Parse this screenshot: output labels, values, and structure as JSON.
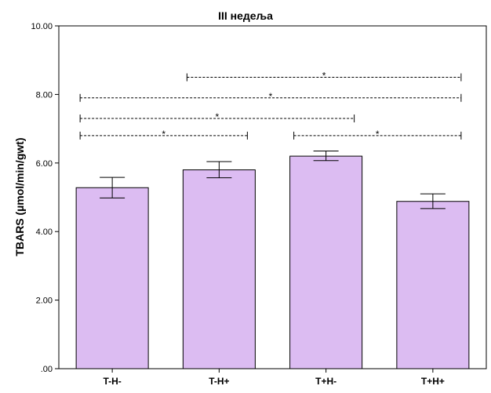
{
  "chart_data": {
    "type": "bar",
    "title": "III недеља",
    "xlabel": "",
    "ylabel": "TBARS (µmol/min/gwt)",
    "categories": [
      "T-H-",
      "T-H+",
      "T+H-",
      "T+H+"
    ],
    "values": [
      5.28,
      5.8,
      6.2,
      4.88
    ],
    "error_low": [
      4.98,
      5.57,
      6.07,
      4.67
    ],
    "error_high": [
      5.58,
      6.04,
      6.35,
      5.1
    ],
    "ylim": [
      0,
      10
    ],
    "yticks": [
      0,
      2,
      4,
      6,
      8,
      10
    ],
    "ytick_labels": [
      ".00",
      "2.00",
      "4.00",
      "6.00",
      "8.00",
      "10.00"
    ],
    "bar_color": "#dcbcf2",
    "grid": false,
    "significance": [
      {
        "from": 0,
        "to": 1,
        "label": "*",
        "y": 6.8
      },
      {
        "from": 0,
        "to": 2,
        "label": "*",
        "y": 7.3
      },
      {
        "from": 0,
        "to": 3,
        "label": "*",
        "y": 7.9
      },
      {
        "from": 1,
        "to": 3,
        "label": "*",
        "y": 8.5
      },
      {
        "from": 2,
        "to": 3,
        "label": "*",
        "y": 6.8
      }
    ]
  }
}
